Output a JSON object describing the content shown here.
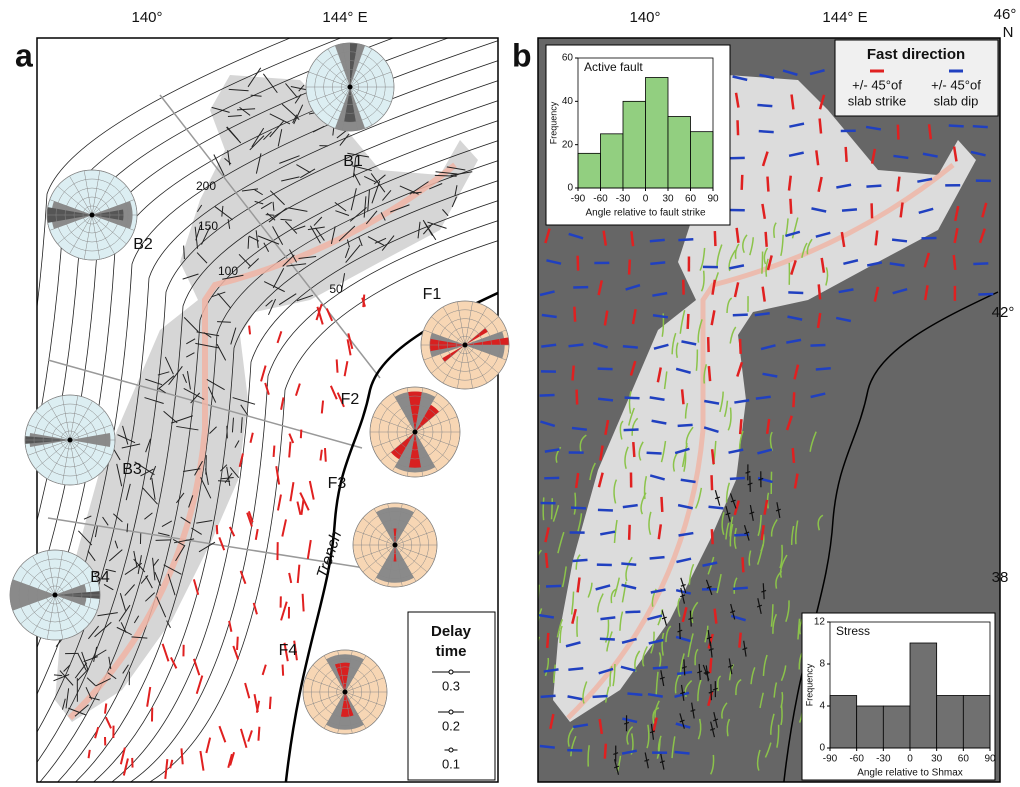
{
  "panel_a": {
    "label": "a",
    "lon_labels": [
      "140°",
      "144° E"
    ],
    "regions": [
      "B1",
      "B2",
      "B3",
      "B4",
      "F1",
      "F2",
      "F3",
      "F4"
    ],
    "contour_labels": [
      "200",
      "150",
      "100",
      "50"
    ],
    "trench_label": "Trench",
    "legend": {
      "title": [
        "Delay",
        "time"
      ],
      "entries": [
        "0.3",
        "0.2",
        "0.1"
      ]
    }
  },
  "panel_b": {
    "label": "b",
    "lon_labels": [
      "140°",
      "144° E"
    ],
    "lat_labels": [
      "46°",
      "N",
      "42°",
      "38"
    ],
    "legend": {
      "title": "Fast direction",
      "entries": [
        [
          "+/- 45°of",
          "slab strike"
        ],
        [
          "+/- 45°of",
          "slab dip"
        ]
      ]
    }
  },
  "chart_data": [
    {
      "type": "histogram",
      "title": "Active fault",
      "xlabel": "Angle relative to fault strike",
      "ylabel": "Frequency",
      "bins": [
        -90,
        -60,
        -30,
        0,
        30,
        60,
        90
      ],
      "values": [
        16,
        25,
        40,
        51,
        33,
        26
      ],
      "color": "#92cf80",
      "xlim": [
        -90,
        90
      ],
      "xticks": [
        -90,
        -60,
        -30,
        0,
        30,
        60,
        90
      ],
      "ylim": [
        0,
        60
      ],
      "yticks": [
        0,
        20,
        40,
        60
      ]
    },
    {
      "type": "histogram",
      "title": "Stress",
      "xlabel": "Angle relative to Shmax",
      "ylabel": "Frequency",
      "bins": [
        -90,
        -60,
        -30,
        0,
        30,
        60,
        90
      ],
      "values": [
        5,
        4,
        4,
        10,
        5,
        5
      ],
      "color": "#707070",
      "xlim": [
        -90,
        90
      ],
      "xticks": [
        -90,
        -60,
        -30,
        0,
        30,
        60,
        90
      ],
      "ylim": [
        0,
        12
      ],
      "yticks": [
        0,
        4,
        8,
        12
      ]
    }
  ]
}
